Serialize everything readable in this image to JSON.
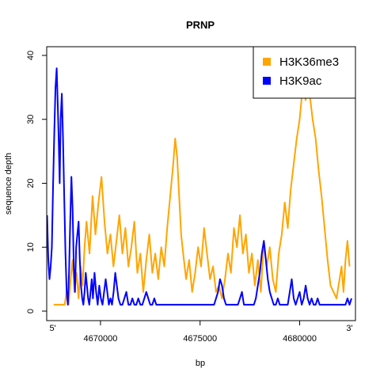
{
  "chart_data": {
    "type": "line",
    "title": "PRNP",
    "xlabel": "bp",
    "ylabel": "sequence depth",
    "xlim": [
      4667300,
      4682800
    ],
    "ylim": [
      0,
      40
    ],
    "xticks": [
      4670000,
      4675000,
      4680000
    ],
    "xtick_labels": [
      "4670000",
      "4675000",
      "4680000"
    ],
    "yticks": [
      0,
      10,
      20,
      30,
      40
    ],
    "ytick_labels": [
      "0",
      "10",
      "20",
      "30",
      "40"
    ],
    "end_labels": {
      "start": "5'",
      "end": "3'",
      "start_x": 4667600,
      "end_x": 4682500
    },
    "grid": false,
    "legend_position": "top-right",
    "series": [
      {
        "name": "H3K36me3",
        "color": "#FFA500",
        "x": [
          4667650,
          4668000,
          4668200,
          4668300,
          4668400,
          4668500,
          4668600,
          4668700,
          4668800,
          4668900,
          4669000,
          4669100,
          4669200,
          4669300,
          4669450,
          4669600,
          4669750,
          4669900,
          4670050,
          4670200,
          4670350,
          4670500,
          4670650,
          4670800,
          4670950,
          4671100,
          4671250,
          4671400,
          4671550,
          4671700,
          4671850,
          4672000,
          4672150,
          4672300,
          4672450,
          4672600,
          4672750,
          4672900,
          4673050,
          4673200,
          4673350,
          4673500,
          4673650,
          4673750,
          4673850,
          4673950,
          4674050,
          4674150,
          4674300,
          4674450,
          4674600,
          4674750,
          4674900,
          4675050,
          4675200,
          4675350,
          4675500,
          4675650,
          4675800,
          4675950,
          4676100,
          4676250,
          4676400,
          4676550,
          4676700,
          4676850,
          4677000,
          4677150,
          4677300,
          4677450,
          4677600,
          4677750,
          4677900,
          4678050,
          4678200,
          4678350,
          4678500,
          4678650,
          4678800,
          4678950,
          4679100,
          4679250,
          4679400,
          4679550,
          4679700,
          4679850,
          4680000,
          4680150,
          4680300,
          4680400,
          4680500,
          4680650,
          4680800,
          4680950,
          4681100,
          4681250,
          4681400,
          4681550,
          4681700,
          4681850,
          4682000,
          4682100,
          4682200,
          4682300,
          4682400,
          4682500
        ],
        "y": [
          1,
          1,
          1,
          3,
          1,
          5,
          8,
          3,
          6,
          2,
          7,
          4,
          10,
          14,
          9,
          18,
          12,
          17,
          21,
          14,
          9,
          12,
          7,
          11,
          15,
          9,
          13,
          7,
          10,
          14,
          6,
          9,
          3,
          8,
          12,
          6,
          9,
          5,
          10,
          7,
          13,
          18,
          23,
          27,
          24,
          18,
          12,
          9,
          5,
          8,
          3,
          6,
          10,
          7,
          13,
          9,
          5,
          7,
          3,
          4,
          2,
          5,
          9,
          6,
          13,
          10,
          15,
          9,
          12,
          6,
          9,
          4,
          8,
          3,
          11,
          7,
          10,
          5,
          3,
          9,
          12,
          17,
          13,
          19,
          23,
          27,
          30,
          35,
          33,
          36,
          34,
          30,
          27,
          22,
          18,
          13,
          8,
          4,
          3,
          2,
          5,
          7,
          3,
          8,
          11,
          7
        ]
      },
      {
        "name": "H3K9ac",
        "color": "#0000FF",
        "x": [
          4667320,
          4667380,
          4667440,
          4667500,
          4667560,
          4667620,
          4667680,
          4667740,
          4667800,
          4667850,
          4667900,
          4667950,
          4668000,
          4668060,
          4668120,
          4668180,
          4668240,
          4668300,
          4668360,
          4668420,
          4668480,
          4668540,
          4668600,
          4668660,
          4668720,
          4668780,
          4668840,
          4668900,
          4668960,
          4669020,
          4669080,
          4669140,
          4669200,
          4669260,
          4669320,
          4669380,
          4669440,
          4669500,
          4669560,
          4669620,
          4669700,
          4669780,
          4669860,
          4669940,
          4670020,
          4670100,
          4670180,
          4670260,
          4670340,
          4670420,
          4670500,
          4670580,
          4670660,
          4670740,
          4670820,
          4670900,
          4671000,
          4671100,
          4671200,
          4671300,
          4671400,
          4671500,
          4671600,
          4671700,
          4671800,
          4671900,
          4672000,
          4672100,
          4672200,
          4672300,
          4672400,
          4672500,
          4672600,
          4672700,
          4672800,
          4672900,
          4673000,
          4673200,
          4673400,
          4673600,
          4673800,
          4674000,
          4674200,
          4674400,
          4674600,
          4674800,
          4675000,
          4675200,
          4675400,
          4675600,
          4675700,
          4675800,
          4675900,
          4676000,
          4676100,
          4676200,
          4676300,
          4676500,
          4676700,
          4676900,
          4677000,
          4677100,
          4677200,
          4677300,
          4677400,
          4677500,
          4677600,
          4677700,
          4677800,
          4677900,
          4678000,
          4678100,
          4678200,
          4678300,
          4678400,
          4678500,
          4678600,
          4678700,
          4678800,
          4678900,
          4679000,
          4679200,
          4679400,
          4679500,
          4679600,
          4679700,
          4679800,
          4679900,
          4680000,
          4680100,
          4680200,
          4680300,
          4680400,
          4680500,
          4680600,
          4680700,
          4680800,
          4680900,
          4681000,
          4681200,
          4681400,
          4681600,
          4681800,
          4682000,
          4682100,
          4682200,
          4682300,
          4682400,
          4682500,
          4682600
        ],
        "y": [
          15,
          8,
          5,
          7,
          10,
          20,
          28,
          35,
          38,
          33,
          27,
          20,
          30,
          34,
          27,
          18,
          9,
          3,
          1,
          6,
          14,
          21,
          16,
          7,
          3,
          10,
          12,
          14,
          8,
          4,
          2,
          1,
          3,
          6,
          4,
          2,
          1,
          3,
          5,
          2,
          6,
          3,
          1,
          4,
          2,
          1,
          3,
          5,
          3,
          1,
          2,
          1,
          3,
          6,
          4,
          2,
          1,
          1,
          2,
          3,
          1,
          1,
          2,
          1,
          1,
          2,
          1,
          1,
          2,
          3,
          2,
          1,
          1,
          2,
          1,
          1,
          1,
          1,
          1,
          1,
          1,
          1,
          1,
          1,
          1,
          1,
          1,
          1,
          1,
          1,
          1,
          2,
          3,
          5,
          4,
          2,
          1,
          1,
          1,
          1,
          2,
          3,
          1,
          1,
          1,
          1,
          1,
          1,
          2,
          4,
          6,
          9,
          11,
          8,
          5,
          3,
          2,
          1,
          1,
          2,
          1,
          1,
          1,
          3,
          5,
          2,
          1,
          2,
          3,
          1,
          2,
          4,
          2,
          1,
          2,
          1,
          1,
          2,
          1,
          1,
          1,
          1,
          1,
          1,
          1,
          1,
          1,
          2,
          1,
          2
        ]
      }
    ]
  }
}
